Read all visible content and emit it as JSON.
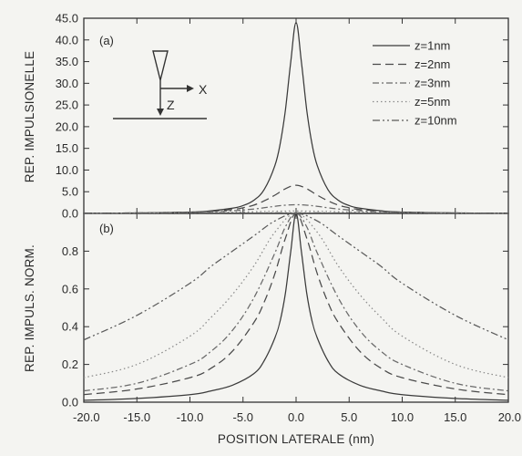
{
  "chart_data": [
    {
      "panel": "(a)",
      "type": "line",
      "xlabel": "",
      "ylabel": "REP. IMPULSIONELLE",
      "xlim": [
        -20,
        20
      ],
      "ylim": [
        0,
        45
      ],
      "yticks": [
        "0.0",
        "5.0",
        "10.0",
        "15.0",
        "20.0",
        "25.0",
        "30.0",
        "35.0",
        "40.0",
        "45.0"
      ],
      "yticks_values": [
        0,
        5,
        10,
        15,
        20,
        25,
        30,
        35,
        40,
        45
      ],
      "legend_position": "top-right",
      "inset": {
        "x_label": "X",
        "z_label": "Z"
      },
      "series": [
        {
          "name": "z=1nm",
          "dash": "solid",
          "color": "#3a3a3a",
          "x": [
            -20,
            -15,
            -10,
            -8,
            -6,
            -5,
            -4,
            -3,
            -2,
            -1.5,
            -1,
            -0.5,
            0,
            0.5,
            1,
            1.5,
            2,
            3,
            4,
            5,
            6,
            8,
            10,
            15,
            20
          ],
          "y": [
            0.05,
            0.1,
            0.3,
            0.6,
            1.2,
            1.8,
            3.0,
            5.5,
            11.0,
            16.0,
            24.0,
            35.0,
            44.0,
            35.0,
            24.0,
            16.0,
            11.0,
            5.5,
            3.0,
            1.8,
            1.2,
            0.6,
            0.3,
            0.1,
            0.05
          ]
        },
        {
          "name": "z=2nm",
          "dash": "longdash",
          "color": "#4a4a4a",
          "x": [
            -20,
            -15,
            -10,
            -8,
            -6,
            -5,
            -4,
            -3,
            -2,
            -1,
            0,
            1,
            2,
            3,
            4,
            5,
            6,
            8,
            10,
            15,
            20
          ],
          "y": [
            0.05,
            0.1,
            0.3,
            0.5,
            0.9,
            1.3,
            1.9,
            2.9,
            4.2,
            5.7,
            6.5,
            5.7,
            4.2,
            2.9,
            1.9,
            1.3,
            0.9,
            0.5,
            0.3,
            0.1,
            0.05
          ]
        },
        {
          "name": "z=3nm",
          "dash": "dashdot",
          "color": "#6a6a6a",
          "x": [
            -20,
            -15,
            -10,
            -8,
            -6,
            -4,
            -3,
            -2,
            -1,
            0,
            1,
            2,
            3,
            4,
            6,
            8,
            10,
            15,
            20
          ],
          "y": [
            0.05,
            0.1,
            0.2,
            0.35,
            0.6,
            1.0,
            1.3,
            1.65,
            1.9,
            2.0,
            1.9,
            1.65,
            1.3,
            1.0,
            0.6,
            0.35,
            0.2,
            0.1,
            0.05
          ]
        },
        {
          "name": "z=5nm",
          "dash": "dotted",
          "color": "#8a8a8a",
          "x": [
            -20,
            -15,
            -10,
            -6,
            -4,
            -2,
            0,
            2,
            4,
            6,
            10,
            15,
            20
          ],
          "y": [
            0.05,
            0.1,
            0.15,
            0.3,
            0.4,
            0.5,
            0.55,
            0.5,
            0.4,
            0.3,
            0.15,
            0.1,
            0.05
          ]
        },
        {
          "name": "z=10nm",
          "dash": "dashdotdot",
          "color": "#5a5a5a",
          "x": [
            -20,
            -15,
            -10,
            -6,
            -4,
            -2,
            0,
            2,
            4,
            6,
            10,
            15,
            20
          ],
          "y": [
            0.04,
            0.06,
            0.08,
            0.1,
            0.11,
            0.12,
            0.12,
            0.12,
            0.11,
            0.1,
            0.08,
            0.06,
            0.04
          ]
        }
      ]
    },
    {
      "panel": "(b)",
      "type": "line",
      "xlabel": "POSITION LATERALE (nm)",
      "ylabel": "REP. IMPULS. NORM.",
      "xlim": [
        -20,
        20
      ],
      "ylim": [
        0,
        1.0
      ],
      "xticks": [
        "-20.0",
        "-15.0",
        "-10.0",
        "-5.0",
        "0.0",
        "5.0",
        "10.0",
        "15.0",
        "20.0"
      ],
      "xticks_values": [
        -20,
        -15,
        -10,
        -5,
        0,
        5,
        10,
        15,
        20
      ],
      "yticks": [
        "0.0",
        "0.2",
        "0.4",
        "0.6",
        "0.8"
      ],
      "yticks_values": [
        0,
        0.2,
        0.4,
        0.6,
        0.8
      ],
      "series": [
        {
          "name": "z=1nm",
          "dash": "solid",
          "color": "#3a3a3a",
          "x": [
            -20,
            -15,
            -10,
            -8,
            -6,
            -4,
            -3,
            -2,
            -1.5,
            -1,
            -0.5,
            0,
            0.5,
            1,
            1.5,
            2,
            3,
            4,
            6,
            8,
            10,
            15,
            20
          ],
          "y": [
            0.01,
            0.02,
            0.04,
            0.06,
            0.09,
            0.15,
            0.22,
            0.34,
            0.43,
            0.58,
            0.8,
            1.0,
            0.8,
            0.58,
            0.43,
            0.34,
            0.22,
            0.15,
            0.09,
            0.06,
            0.04,
            0.02,
            0.01
          ]
        },
        {
          "name": "z=2nm",
          "dash": "longdash",
          "color": "#4a4a4a",
          "x": [
            -20,
            -15,
            -10,
            -8,
            -6,
            -4,
            -3,
            -2,
            -1,
            0,
            1,
            2,
            3,
            4,
            6,
            8,
            10,
            15,
            20
          ],
          "y": [
            0.04,
            0.07,
            0.13,
            0.18,
            0.27,
            0.42,
            0.53,
            0.68,
            0.87,
            1.0,
            0.87,
            0.68,
            0.53,
            0.42,
            0.27,
            0.18,
            0.13,
            0.07,
            0.04
          ]
        },
        {
          "name": "z=3nm",
          "dash": "dashdot",
          "color": "#6a6a6a",
          "x": [
            -20,
            -15,
            -10,
            -8,
            -6,
            -4,
            -2,
            -1,
            0,
            1,
            2,
            4,
            6,
            8,
            10,
            15,
            20
          ],
          "y": [
            0.06,
            0.1,
            0.2,
            0.27,
            0.38,
            0.55,
            0.79,
            0.93,
            1.0,
            0.93,
            0.79,
            0.55,
            0.38,
            0.27,
            0.2,
            0.1,
            0.06
          ]
        },
        {
          "name": "z=5nm",
          "dash": "dotted",
          "color": "#8a8a8a",
          "x": [
            -20,
            -15,
            -10,
            -8,
            -6,
            -4,
            -2,
            0,
            2,
            4,
            6,
            8,
            10,
            15,
            20
          ],
          "y": [
            0.13,
            0.2,
            0.35,
            0.45,
            0.57,
            0.72,
            0.9,
            1.0,
            0.9,
            0.72,
            0.57,
            0.45,
            0.35,
            0.2,
            0.13
          ]
        },
        {
          "name": "z=10nm",
          "dash": "dashdotdot",
          "color": "#5a5a5a",
          "x": [
            -20,
            -15,
            -10,
            -8,
            -6,
            -4,
            -2,
            0,
            2,
            4,
            6,
            8,
            10,
            15,
            20
          ],
          "y": [
            0.33,
            0.46,
            0.63,
            0.72,
            0.8,
            0.88,
            0.96,
            1.0,
            0.96,
            0.88,
            0.8,
            0.72,
            0.63,
            0.46,
            0.33
          ]
        }
      ]
    }
  ]
}
